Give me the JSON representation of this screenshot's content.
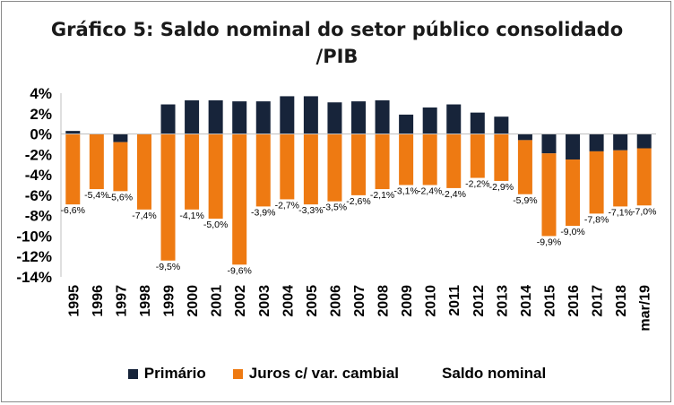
{
  "chart_data": {
    "type": "bar",
    "title_line1": "Gráfico 5: Saldo nominal do setor público consolidado",
    "title_line2": "/PIB",
    "categories": [
      "1995",
      "1996",
      "1997",
      "1998",
      "1999",
      "2000",
      "2001",
      "2002",
      "2003",
      "2004",
      "2005",
      "2006",
      "2007",
      "2008",
      "2009",
      "2010",
      "2011",
      "2012",
      "2013",
      "2014",
      "2015",
      "2016",
      "2017",
      "2018",
      "mar/19"
    ],
    "ylim": [
      -14,
      4
    ],
    "yticks": [
      4,
      2,
      0,
      -2,
      -4,
      -6,
      -8,
      -10,
      -12,
      -14
    ],
    "ytick_labels": [
      "4%",
      "2%",
      "0%",
      "-2%",
      "-4%",
      "-6%",
      "-8%",
      "-10%",
      "-12%",
      "-14%"
    ],
    "series": [
      {
        "name": "Primário",
        "color": "#17243a",
        "values": [
          0.3,
          0,
          -0.8,
          0,
          2.9,
          3.3,
          3.3,
          3.2,
          3.2,
          3.7,
          3.7,
          3.1,
          3.2,
          3.3,
          1.9,
          2.6,
          2.9,
          2.1,
          1.7,
          -0.6,
          -1.9,
          -2.5,
          -1.7,
          -1.6,
          -1.4
        ]
      },
      {
        "name": "Juros c/ var. cambial",
        "color": "#ee7a12",
        "values": [
          -6.9,
          -5.4,
          -4.8,
          -7.4,
          -12.4,
          -7.4,
          -8.3,
          -12.8,
          -7.1,
          -6.4,
          -6.9,
          -6.6,
          -6.0,
          -5.4,
          -5.0,
          -5.0,
          -5.3,
          -4.3,
          -4.6,
          -5.3,
          -8.1,
          -6.5,
          -6.1,
          -5.5,
          -5.6
        ]
      },
      {
        "name": "Saldo nominal",
        "color": "#ffffff",
        "values": [
          -6.6,
          -5.4,
          -5.6,
          -7.4,
          -9.5,
          -4.1,
          -5.0,
          -9.6,
          -3.9,
          -2.7,
          -3.3,
          -3.5,
          -2.6,
          -2.1,
          -3.1,
          -2.4,
          -2.4,
          -2.2,
          -2.9,
          -5.9,
          -9.9,
          -9.0,
          -7.8,
          -7.1,
          -7.0
        ]
      }
    ],
    "data_labels": [
      "-6,6%",
      "-5,4%",
      "-5,6%",
      "-7,4%",
      "-9,5%",
      "-4,1%",
      "-5,0%",
      "-9,6%",
      "-3,9%",
      "-2,7%",
      "-3,3%",
      "-3,5%",
      "-2,6%",
      "-2,1%",
      "-3,1%",
      "-2,4%",
      "-2,4%",
      "-2,2%",
      "-2,9%",
      "-5,9%",
      "-9,9%",
      "-9,0%",
      "-7,8%",
      "-7,1%",
      "-7,0%"
    ],
    "legend_position": "bottom",
    "grid": false
  }
}
